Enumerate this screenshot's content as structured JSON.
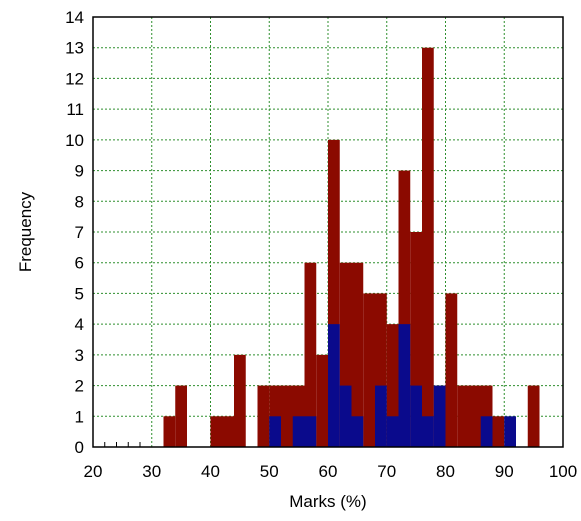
{
  "chart_data": {
    "type": "bar",
    "xlabel": "Marks (%)",
    "ylabel": "Frequency",
    "xlim": [
      20,
      100
    ],
    "ylim": [
      0,
      14
    ],
    "xticks": [
      20,
      30,
      40,
      50,
      60,
      70,
      80,
      90,
      100
    ],
    "yticks": [
      0,
      1,
      2,
      3,
      4,
      5,
      6,
      7,
      8,
      9,
      10,
      11,
      12,
      13,
      14
    ],
    "grid": true,
    "bin_width": 2,
    "overlaid": true,
    "series": [
      {
        "color": "#8b0a00",
        "bins": [
          {
            "x0": 32,
            "x1": 34,
            "y": 1
          },
          {
            "x0": 34,
            "x1": 36,
            "y": 2
          },
          {
            "x0": 40,
            "x1": 44,
            "y": 1
          },
          {
            "x0": 44,
            "x1": 46,
            "y": 3
          },
          {
            "x0": 48,
            "x1": 50,
            "y": 2
          },
          {
            "x0": 50,
            "x1": 56,
            "y": 2
          },
          {
            "x0": 56,
            "x1": 58,
            "y": 6
          },
          {
            "x0": 58,
            "x1": 60,
            "y": 3
          },
          {
            "x0": 60,
            "x1": 62,
            "y": 10
          },
          {
            "x0": 62,
            "x1": 66,
            "y": 6
          },
          {
            "x0": 66,
            "x1": 70,
            "y": 5
          },
          {
            "x0": 70,
            "x1": 72,
            "y": 4
          },
          {
            "x0": 72,
            "x1": 74,
            "y": 9
          },
          {
            "x0": 74,
            "x1": 76,
            "y": 7
          },
          {
            "x0": 76,
            "x1": 78,
            "y": 13
          },
          {
            "x0": 78,
            "x1": 80,
            "y": 2
          },
          {
            "x0": 80,
            "x1": 82,
            "y": 5
          },
          {
            "x0": 82,
            "x1": 88,
            "y": 2
          },
          {
            "x0": 88,
            "x1": 90,
            "y": 1
          },
          {
            "x0": 94,
            "x1": 96,
            "y": 2
          }
        ]
      },
      {
        "color": "#0a0a8c",
        "bins": [
          {
            "x0": 50,
            "x1": 52,
            "y": 1
          },
          {
            "x0": 54,
            "x1": 58,
            "y": 1
          },
          {
            "x0": 60,
            "x1": 62,
            "y": 4
          },
          {
            "x0": 62,
            "x1": 64,
            "y": 2
          },
          {
            "x0": 64,
            "x1": 66,
            "y": 1
          },
          {
            "x0": 68,
            "x1": 70,
            "y": 2
          },
          {
            "x0": 70,
            "x1": 72,
            "y": 1
          },
          {
            "x0": 72,
            "x1": 74,
            "y": 4
          },
          {
            "x0": 74,
            "x1": 76,
            "y": 2
          },
          {
            "x0": 76,
            "x1": 78,
            "y": 1
          },
          {
            "x0": 78,
            "x1": 80,
            "y": 2
          },
          {
            "x0": 86,
            "x1": 88,
            "y": 1
          },
          {
            "x0": 90,
            "x1": 92,
            "y": 1
          }
        ]
      }
    ]
  }
}
